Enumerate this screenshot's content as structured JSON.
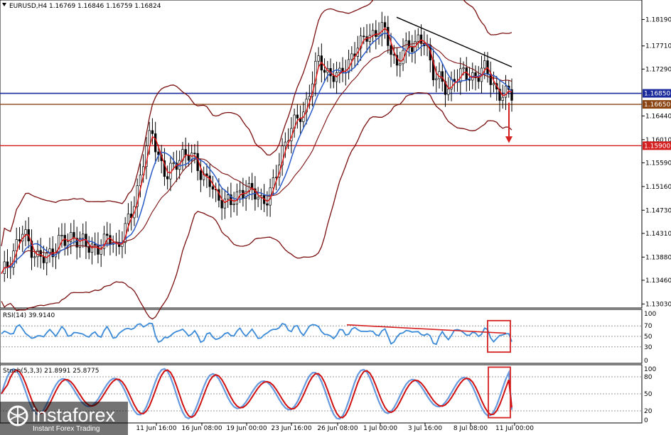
{
  "header": {
    "symbol_info": "EURUSD,H4  1.16769 1.16846 1.16759 1.16824"
  },
  "price_panel": {
    "y_ticks": [
      "1.18190",
      "1.17710",
      "1.17290",
      "1.16850",
      "1.16650",
      "1.16440",
      "1.16010",
      "1.15900",
      "1.15590",
      "1.15160",
      "1.14730",
      "1.14310",
      "1.13880",
      "1.13460",
      "1.13030"
    ],
    "y_tick_values": [
      1.1819,
      1.1771,
      1.1729,
      1.1644,
      1.1601,
      1.1559,
      1.1516,
      1.1473,
      1.1431,
      1.1388,
      1.1346,
      1.1303
    ],
    "y_tick_labels": [
      "1.18190",
      "1.17710",
      "1.17290",
      "1.16440",
      "1.16010",
      "1.15590",
      "1.15160",
      "1.14730",
      "1.14310",
      "1.13880",
      "1.13460",
      "1.13030"
    ],
    "price_tags": [
      {
        "label": "1.16850",
        "value": 1.1685,
        "color": "#1c2b9b"
      },
      {
        "label": "1.16650",
        "value": 1.1665,
        "color": "#8b4513"
      },
      {
        "label": "1.15900",
        "value": 1.159,
        "color": "#d42020"
      }
    ],
    "ylim": [
      1.1297,
      1.1853
    ]
  },
  "rsi_panel": {
    "title": "RSI(14) 39.9140",
    "ticks": [
      "100",
      "70",
      "50",
      "30",
      "0"
    ]
  },
  "stoch_panel": {
    "title": "Stoch(5,3,3) 21.8991 25.8775",
    "ticks": [
      "100",
      "80",
      "50",
      "20",
      "0"
    ]
  },
  "x_axis": {
    "labels": [
      "11 Jun 16:00",
      "16 Jun 08:00",
      "19 Jun 00:00",
      "23 Jun 16:00",
      "26 Jun 08:00",
      "1 Jul 00:00",
      "3 Jul 16:00",
      "8 Jul 08:00",
      "11 Jul 00:00"
    ]
  },
  "watermark": {
    "brand": "instaforex",
    "tagline": "Instant Forex Trading"
  },
  "colors": {
    "bollinger": "#7a0f0f",
    "ma_fast": "#e01818",
    "ma_slow": "#2a5bc8",
    "support_blue": "#1c2b9b",
    "support_brown": "#8b4513",
    "target_red": "#d42020",
    "rsi_line": "#3b8ad8",
    "stoch_main": "#6699dd",
    "stoch_signal": "#d01010"
  },
  "chart_data": {
    "type": "candlestick",
    "symbol": "EURUSD",
    "timeframe": "H4",
    "ohlc_header": {
      "open": 1.16769,
      "high": 1.16846,
      "low": 1.16759,
      "close": 1.16824
    },
    "x_labels": [
      "11 Jun 16:00",
      "16 Jun 08:00",
      "19 Jun 00:00",
      "23 Jun 16:00",
      "26 Jun 08:00",
      "1 Jul 00:00",
      "3 Jul 16:00",
      "8 Jul 08:00",
      "11 Jul 00:00"
    ],
    "ylim": [
      1.1297,
      1.1853
    ],
    "close_path": [
      1.135,
      1.138,
      1.141,
      1.143,
      1.141,
      1.139,
      1.138,
      1.14,
      1.142,
      1.141,
      1.143,
      1.142,
      1.14,
      1.141,
      1.141,
      1.142,
      1.141,
      1.143,
      1.146,
      1.152,
      1.158,
      1.161,
      1.157,
      1.153,
      1.155,
      1.158,
      1.157,
      1.156,
      1.154,
      1.152,
      1.149,
      1.15,
      1.148,
      1.15,
      1.152,
      1.15,
      1.149,
      1.15,
      1.152,
      1.158,
      1.162,
      1.163,
      1.165,
      1.17,
      1.174,
      1.173,
      1.172,
      1.171,
      1.174,
      1.176,
      1.177,
      1.18,
      1.179,
      1.18,
      1.178,
      1.173,
      1.176,
      1.178,
      1.178,
      1.177,
      1.173,
      1.171,
      1.168,
      1.172,
      1.172,
      1.171,
      1.172,
      1.173,
      1.171,
      1.169,
      1.168,
      1.1682
    ],
    "horizontal_levels": [
      1.1685,
      1.1665,
      1.159
    ],
    "rsi": {
      "period": 14,
      "value": 39.914,
      "levels": [
        70,
        50,
        30
      ]
    },
    "stochastic": {
      "params": [
        5,
        3,
        3
      ],
      "main": 21.8991,
      "signal": 25.8775,
      "levels": [
        80,
        50,
        20
      ]
    }
  }
}
